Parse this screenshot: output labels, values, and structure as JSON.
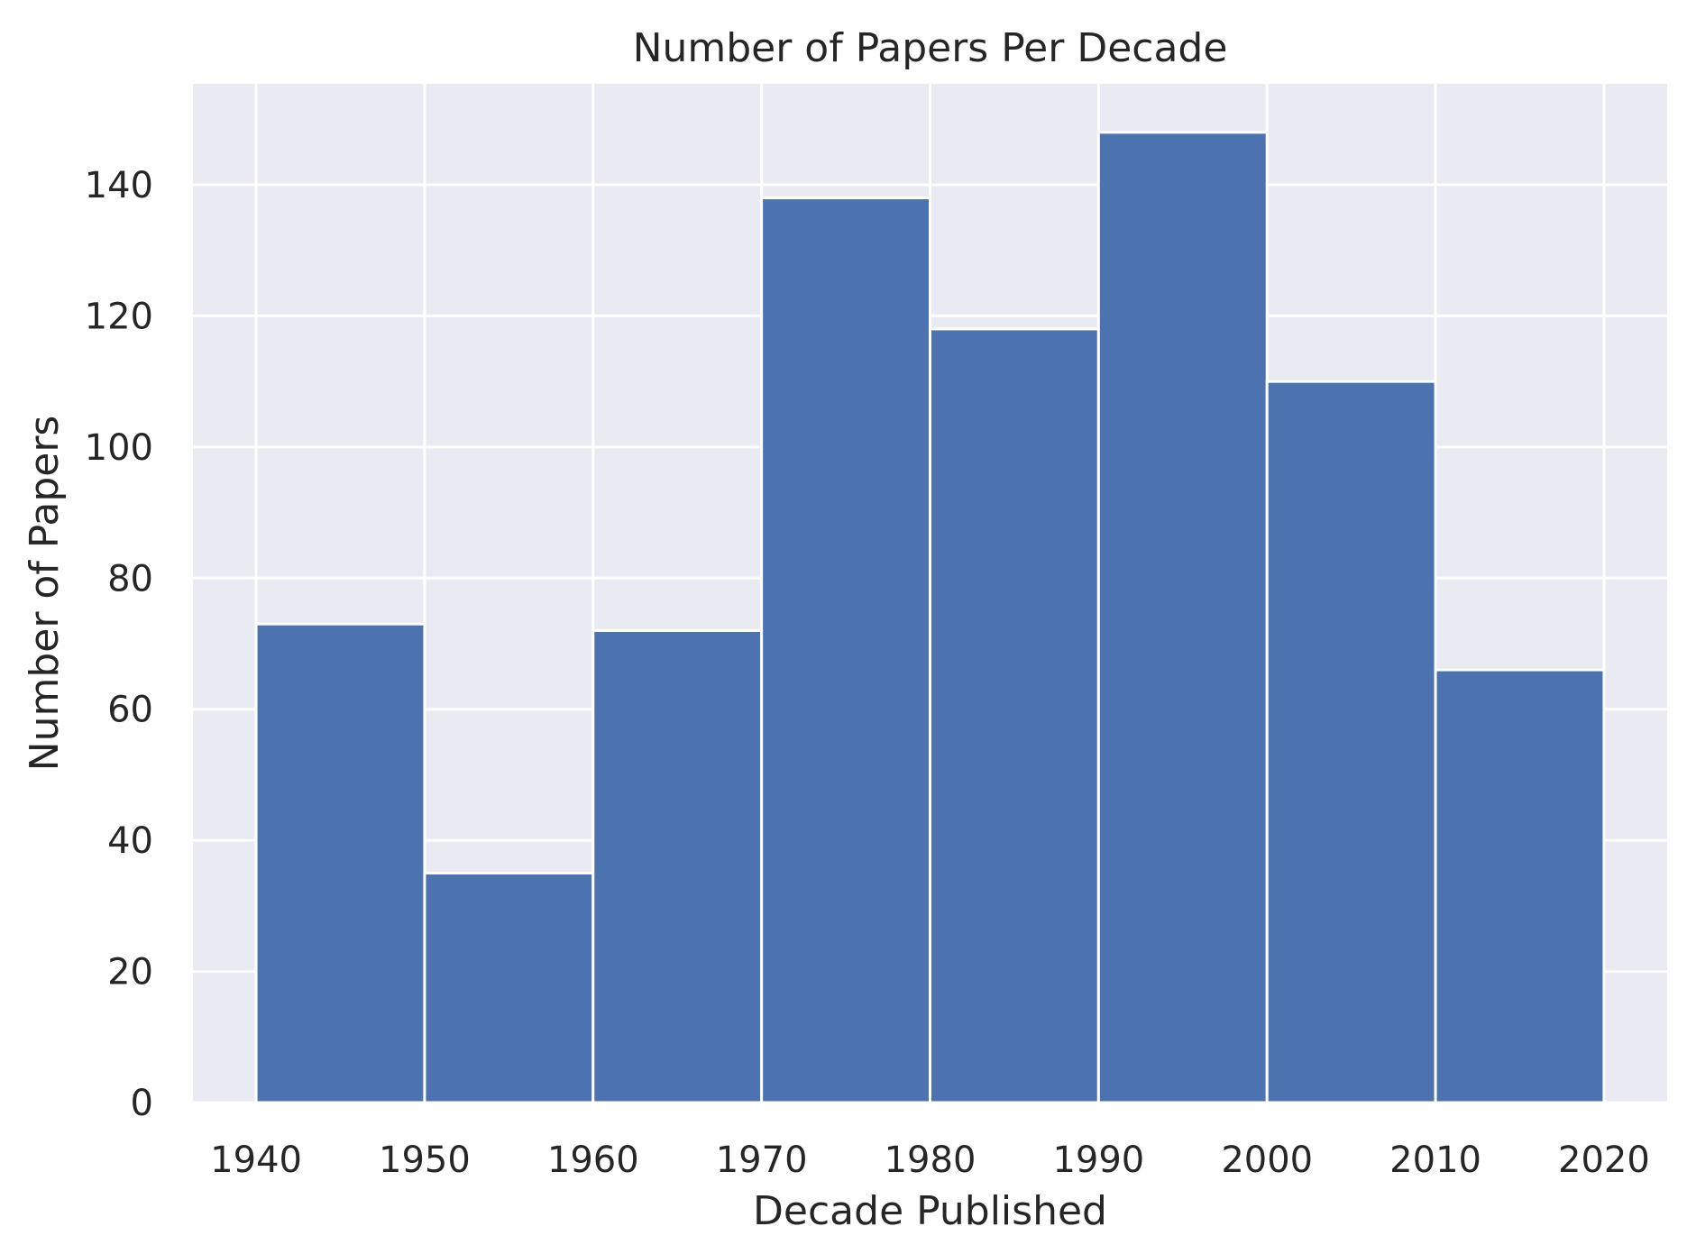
{
  "chart_data": {
    "type": "bar",
    "title": "Number of Papers Per Decade",
    "xlabel": "Decade Published",
    "ylabel": "Number of Papers",
    "bin_edges": [
      1940,
      1950,
      1960,
      1970,
      1980,
      1990,
      2000,
      2010,
      2020
    ],
    "values": [
      73,
      35,
      72,
      138,
      118,
      148,
      110,
      66
    ],
    "xticks": [
      1940,
      1950,
      1960,
      1970,
      1980,
      1990,
      2000,
      2010,
      2020
    ],
    "yticks": [
      0,
      20,
      40,
      60,
      80,
      100,
      120,
      140
    ],
    "xlim": [
      1936.25,
      2023.75
    ],
    "ylim": [
      0,
      155.4
    ],
    "grid": true,
    "colors": {
      "bar": "#4c72b0",
      "plot_background": "#eaeaf2",
      "grid": "#ffffff",
      "edge": "#ffffff"
    }
  }
}
